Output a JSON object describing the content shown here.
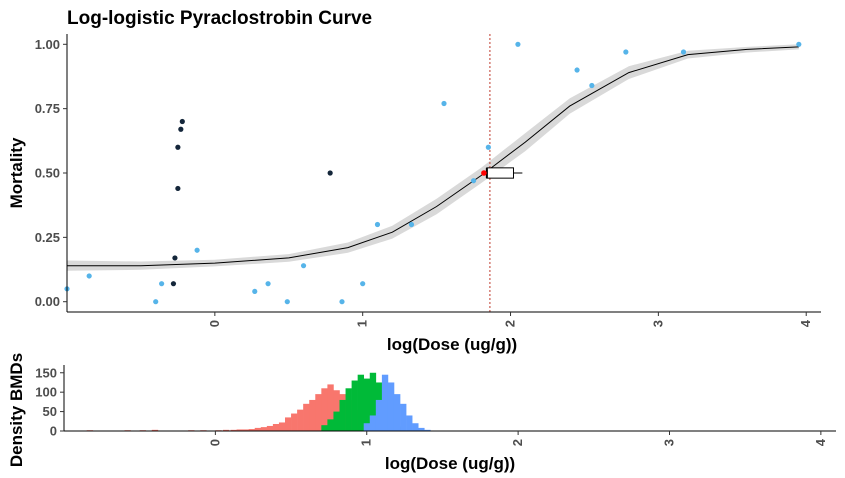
{
  "chart_data": [
    {
      "type": "scatter",
      "title": "Log-logistic Pyraclostrobin Curve",
      "xlabel": "log(Dose (ug/g))",
      "ylabel": "Mortality",
      "xlim": [
        -1.0,
        4.1
      ],
      "ylim": [
        -0.04,
        1.04
      ],
      "xticks": [
        0,
        1,
        2,
        3,
        4
      ],
      "xtick_labels": [
        "0",
        "1",
        "2",
        "3",
        "4"
      ],
      "yticks": [
        0.0,
        0.25,
        0.5,
        0.75,
        1.0
      ],
      "ytick_labels": [
        "0.00",
        "0.25",
        "0.50",
        "0.75",
        "1.00"
      ],
      "grid": false,
      "fit_curve": {
        "model": "log-logistic",
        "x": [
          -1.0,
          -0.5,
          0.0,
          0.5,
          0.9,
          1.2,
          1.5,
          1.8,
          2.1,
          2.4,
          2.8,
          3.2,
          3.6,
          3.95
        ],
        "y": [
          0.14,
          0.14,
          0.15,
          0.17,
          0.21,
          0.27,
          0.37,
          0.49,
          0.62,
          0.76,
          0.89,
          0.96,
          0.98,
          0.99
        ],
        "lower": [
          0.12,
          0.124,
          0.137,
          0.155,
          0.19,
          0.245,
          0.34,
          0.46,
          0.585,
          0.73,
          0.865,
          0.945,
          0.968,
          0.98
        ],
        "upper": [
          0.16,
          0.156,
          0.163,
          0.185,
          0.23,
          0.295,
          0.4,
          0.52,
          0.655,
          0.79,
          0.915,
          0.975,
          0.99,
          1.0
        ],
        "line_color": "#000000",
        "band_color": "#d9d9d9"
      },
      "series": [
        {
          "color": "#56b4e9",
          "points": [
            {
              "x": -1.0,
              "y": 0.05
            },
            {
              "x": -0.85,
              "y": 0.1
            },
            {
              "x": -0.4,
              "y": 0.0
            },
            {
              "x": -0.36,
              "y": 0.07
            },
            {
              "x": -0.12,
              "y": 0.2
            },
            {
              "x": 0.27,
              "y": 0.04
            },
            {
              "x": 0.36,
              "y": 0.07
            },
            {
              "x": 0.49,
              "y": 0.0
            },
            {
              "x": 0.6,
              "y": 0.14
            },
            {
              "x": 0.86,
              "y": 0.0
            },
            {
              "x": 1.0,
              "y": 0.07
            },
            {
              "x": 1.1,
              "y": 0.3
            },
            {
              "x": 1.33,
              "y": 0.3
            },
            {
              "x": 1.55,
              "y": 0.77
            },
            {
              "x": 1.75,
              "y": 0.47
            },
            {
              "x": 1.85,
              "y": 0.6
            },
            {
              "x": 2.05,
              "y": 1.0
            },
            {
              "x": 2.45,
              "y": 0.9
            },
            {
              "x": 2.55,
              "y": 0.84
            },
            {
              "x": 2.78,
              "y": 0.97
            },
            {
              "x": 3.17,
              "y": 0.97
            },
            {
              "x": 3.95,
              "y": 1.0
            }
          ]
        },
        {
          "color": "#14263a",
          "points": [
            {
              "x": -0.28,
              "y": 0.07
            },
            {
              "x": -0.27,
              "y": 0.17
            },
            {
              "x": -0.25,
              "y": 0.44
            },
            {
              "x": -0.25,
              "y": 0.6
            },
            {
              "x": -0.23,
              "y": 0.67
            },
            {
              "x": -0.22,
              "y": 0.7
            },
            {
              "x": 0.78,
              "y": 0.5
            }
          ]
        }
      ],
      "bmd": {
        "x": 1.82,
        "y": 0.5,
        "color": "#ff0000",
        "vline_color": "#c0392b",
        "interval": [
          1.83,
          2.08
        ],
        "box": [
          1.84,
          2.02,
          2.08
        ],
        "box_halfheight": 0.02
      }
    },
    {
      "type": "bar",
      "xlabel": "log(Dose (ug/g))",
      "ylabel": "Density BMDs",
      "xlim": [
        -1.0,
        4.1
      ],
      "ylim": [
        0,
        170
      ],
      "xticks": [
        0,
        1,
        2,
        3,
        4
      ],
      "xtick_labels": [
        "0",
        "1",
        "2",
        "3",
        "4"
      ],
      "yticks": [
        0,
        50,
        100,
        150
      ],
      "ytick_labels": [
        "0",
        "50",
        "100",
        "150"
      ],
      "bin_width": 0.04,
      "series": [
        {
          "color": "#f8766d",
          "bins": [
            [
              -0.85,
              2
            ],
            [
              -0.6,
              2
            ],
            [
              -0.5,
              2
            ],
            [
              -0.42,
              3
            ],
            [
              -0.18,
              2
            ],
            [
              -0.1,
              2
            ],
            [
              0.0,
              2
            ],
            [
              0.05,
              3
            ],
            [
              0.1,
              3
            ],
            [
              0.14,
              4
            ],
            [
              0.18,
              4
            ],
            [
              0.22,
              5
            ],
            [
              0.26,
              8
            ],
            [
              0.3,
              10
            ],
            [
              0.34,
              13
            ],
            [
              0.38,
              18
            ],
            [
              0.42,
              22
            ],
            [
              0.46,
              35
            ],
            [
              0.5,
              45
            ],
            [
              0.54,
              55
            ],
            [
              0.58,
              70
            ],
            [
              0.62,
              80
            ],
            [
              0.66,
              95
            ],
            [
              0.7,
              110
            ],
            [
              0.74,
              120
            ],
            [
              0.78,
              105
            ],
            [
              0.82,
              95
            ],
            [
              0.86,
              80
            ],
            [
              0.9,
              55
            ],
            [
              0.94,
              30
            ],
            [
              0.98,
              15
            ]
          ]
        },
        {
          "color": "#00ba38",
          "bins": [
            [
              0.7,
              15
            ],
            [
              0.74,
              30
            ],
            [
              0.78,
              50
            ],
            [
              0.82,
              80
            ],
            [
              0.86,
              110
            ],
            [
              0.9,
              130
            ],
            [
              0.94,
              145
            ],
            [
              0.98,
              135
            ],
            [
              1.02,
              150
            ],
            [
              1.06,
              125
            ],
            [
              1.1,
              70
            ],
            [
              1.14,
              30
            ],
            [
              1.18,
              12
            ]
          ]
        },
        {
          "color": "#619cff",
          "bins": [
            [
              0.98,
              20
            ],
            [
              1.02,
              40
            ],
            [
              1.06,
              80
            ],
            [
              1.1,
              145
            ],
            [
              1.14,
              125
            ],
            [
              1.18,
              95
            ],
            [
              1.22,
              70
            ],
            [
              1.26,
              40
            ],
            [
              1.3,
              20
            ],
            [
              1.34,
              8
            ],
            [
              1.38,
              3
            ]
          ]
        }
      ]
    }
  ]
}
